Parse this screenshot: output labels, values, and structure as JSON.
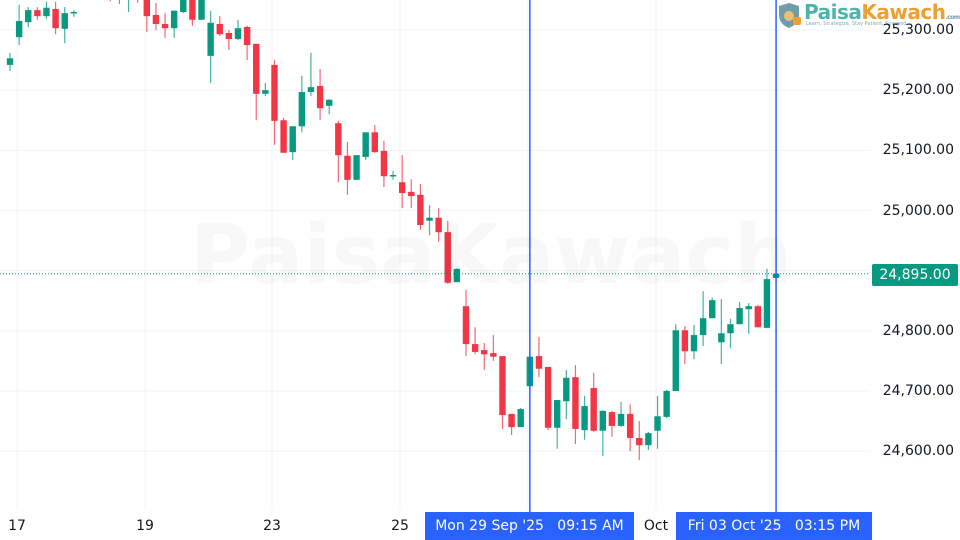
{
  "brand": {
    "name_part1": "Paisa",
    "name_part2": "Kawach",
    "suffix": ".com",
    "tagline": "Learn, Strategize, Stay Patient, Succeed",
    "color1": "#4fb3a9",
    "color2": "#f0a030"
  },
  "chart_data": {
    "type": "candlestick",
    "title": "",
    "interval_times": [
      "09:15",
      "10:15",
      "11:15",
      "12:15",
      "13:15",
      "14:15",
      "15:15"
    ],
    "days": [
      {
        "date": "16 Sep '25",
        "start_time": "15:15",
        "candles": [
          [
            25242,
            25262,
            25232,
            25253
          ]
        ]
      },
      {
        "date": "17 Sep '25",
        "candles": [
          [
            25288,
            25342,
            25275,
            25315
          ],
          [
            25313,
            25338,
            25305,
            25333
          ],
          [
            25333,
            25338,
            25317,
            25323
          ],
          [
            25323,
            25347,
            25318,
            25337
          ],
          [
            25335,
            25347,
            25293,
            25303
          ],
          [
            25302,
            25338,
            25278,
            25328
          ],
          [
            25328,
            25333,
            25322,
            25330
          ]
        ]
      },
      {
        "date": "18 Sep '25",
        "candles": [
          [
            25360,
            25385,
            25355,
            25378
          ],
          [
            25378,
            25395,
            25365,
            25370
          ],
          [
            25370,
            25390,
            25350,
            25358
          ],
          [
            25366,
            25375,
            25348,
            25353
          ],
          [
            25358,
            25375,
            25343,
            25370
          ],
          [
            25353,
            25372,
            25330,
            25363
          ],
          [
            25363,
            25375,
            25345,
            25355
          ]
        ]
      },
      {
        "date": "19 Sep '25",
        "candles": [
          [
            25358,
            25363,
            25297,
            25323
          ],
          [
            25325,
            25345,
            25300,
            25310
          ],
          [
            25310,
            25328,
            25287,
            25303
          ],
          [
            25303,
            25333,
            25287,
            25332
          ],
          [
            25330,
            25363,
            25328,
            25358
          ],
          [
            25358,
            25366,
            25307,
            25317
          ],
          [
            25317,
            25366,
            25317,
            25358
          ]
        ]
      },
      {
        "date": "22 Sep '25",
        "candles": [
          [
            25257,
            25332,
            25212,
            25312
          ],
          [
            25310,
            25323,
            25290,
            25293
          ],
          [
            25295,
            25300,
            25267,
            25285
          ],
          [
            25285,
            25317,
            25283,
            25303
          ],
          [
            25305,
            25307,
            25250,
            25275
          ],
          [
            25277,
            25277,
            25150,
            25194
          ],
          [
            25194,
            25212,
            25190,
            25200
          ]
        ]
      },
      {
        "date": "23 Sep '25",
        "candles": [
          [
            25242,
            25250,
            25109,
            25149
          ],
          [
            25150,
            25154,
            25096,
            25096
          ],
          [
            25097,
            25140,
            25084,
            25140
          ],
          [
            25140,
            25224,
            25130,
            25197
          ],
          [
            25197,
            25262,
            25190,
            25205
          ],
          [
            25207,
            25235,
            25150,
            25170
          ],
          [
            25174,
            25185,
            25160,
            25184
          ]
        ]
      },
      {
        "date": "24 Sep '25",
        "candles": [
          [
            25145,
            25149,
            25047,
            25092
          ],
          [
            25091,
            25114,
            25026,
            25051
          ],
          [
            25051,
            25092,
            25051,
            25092
          ],
          [
            25089,
            25130,
            25084,
            25130
          ],
          [
            25130,
            25142,
            25096,
            25097
          ],
          [
            25099,
            25116,
            25039,
            25057
          ],
          [
            25057,
            25066,
            25051,
            25059
          ]
        ]
      },
      {
        "date": "25 Sep '25",
        "candles": [
          [
            25047,
            25092,
            25004,
            25029
          ],
          [
            25031,
            25052,
            25004,
            25024
          ],
          [
            25026,
            25044,
            24968,
            24976
          ],
          [
            24983,
            25009,
            24959,
            24988
          ],
          [
            24988,
            25004,
            24948,
            24964
          ],
          [
            24964,
            24983,
            24878,
            24880
          ],
          [
            24881,
            24904,
            24881,
            24903
          ]
        ]
      },
      {
        "date": "26 Sep '25",
        "candles": [
          [
            24841,
            24868,
            24758,
            24778
          ],
          [
            24778,
            24806,
            24761,
            24765
          ],
          [
            24768,
            24780,
            24735,
            24761
          ],
          [
            24763,
            24793,
            24750,
            24757
          ],
          [
            24758,
            24758,
            24637,
            24660
          ],
          [
            24662,
            24662,
            24627,
            24640
          ],
          [
            24640,
            24672,
            24640,
            24670
          ]
        ]
      },
      {
        "date": "29 Sep '25",
        "candles": [
          [
            24708,
            24758,
            24708,
            24757
          ],
          [
            24758,
            24790,
            24723,
            24737
          ],
          [
            24740,
            24740,
            24635,
            24639
          ],
          [
            24639,
            24685,
            24604,
            24685
          ],
          [
            24683,
            24735,
            24653,
            24722
          ],
          [
            24723,
            24743,
            24612,
            24637
          ],
          [
            24635,
            24692,
            24619,
            24675
          ]
        ]
      },
      {
        "date": "30 Sep '25",
        "candles": [
          [
            24705,
            24730,
            24632,
            24634
          ],
          [
            24634,
            24668,
            24592,
            24667
          ],
          [
            24665,
            24667,
            24624,
            24642
          ],
          [
            24642,
            24682,
            24640,
            24662
          ],
          [
            24662,
            24678,
            24600,
            24622
          ],
          [
            24622,
            24650,
            24585,
            24610
          ],
          [
            24610,
            24632,
            24602,
            24630
          ]
        ]
      },
      {
        "date": "01 Oct '25",
        "candles": [
          [
            24634,
            24692,
            24604,
            24658
          ],
          [
            24657,
            24702,
            24655,
            24700
          ],
          [
            24700,
            24811,
            24700,
            24801
          ],
          [
            24801,
            24808,
            24745,
            24766
          ],
          [
            24766,
            24810,
            24753,
            24793
          ],
          [
            24793,
            24866,
            24775,
            24821
          ],
          [
            24821,
            24855,
            24821,
            24851
          ]
        ]
      },
      {
        "date": "03 Oct '25",
        "candles": [
          [
            24781,
            24853,
            24745,
            24796
          ],
          [
            24796,
            24820,
            24771,
            24811
          ],
          [
            24811,
            24848,
            24811,
            24838
          ],
          [
            24836,
            24846,
            24795,
            24841
          ],
          [
            24841,
            24843,
            24806,
            24806
          ],
          [
            24805,
            24903,
            24805,
            24886
          ],
          [
            24888,
            24895,
            24888,
            24895
          ]
        ]
      }
    ],
    "candle_format": [
      "open",
      "high",
      "low",
      "close"
    ],
    "y_axis": {
      "ticks": [
        "25,300.00",
        "25,200.00",
        "25,100.00",
        "25,000.00",
        "24,800.00",
        "24,700.00",
        "24,600.00"
      ],
      "tick_values": [
        25300,
        25200,
        25100,
        25000,
        24800,
        24700,
        24600
      ],
      "range": [
        24500,
        25350
      ],
      "position": "right"
    },
    "x_axis": {
      "ticks": [
        "17",
        "19",
        "23",
        "25",
        "Oct"
      ]
    },
    "current_price": {
      "value": 24895,
      "label": "24,895.00"
    },
    "crosshairs": [
      {
        "label": "Mon 29 Sep '25   09:15 AM",
        "day": "29 Sep '25",
        "time": "09:15"
      },
      {
        "label": "Fri 03 Oct '25   03:15 PM",
        "day": "03 Oct '25",
        "time": "15:15"
      }
    ],
    "grid": true,
    "colors": {
      "up": "#089981",
      "down": "#f23645",
      "crosshair": "#2962ff",
      "grid": "#f0f3fa",
      "price_line": "#089981"
    }
  }
}
